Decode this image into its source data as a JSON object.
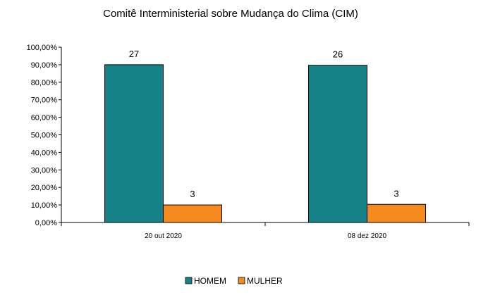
{
  "chart_data": {
    "type": "bar",
    "title": "Comitê Interministerial sobre Mudança do Clima (CIM)",
    "xlabel": "",
    "ylabel": "",
    "categories": [
      "20 out 2020",
      "08 dez 2020"
    ],
    "series": [
      {
        "name": "HOMEM",
        "values": [
          90.0,
          89.66
        ],
        "data_labels": [
          "27",
          "26"
        ],
        "color": "#148287"
      },
      {
        "name": "MULHER",
        "values": [
          10.0,
          10.34
        ],
        "data_labels": [
          "3",
          "3"
        ],
        "color": "#F58A1F"
      }
    ],
    "ylim": [
      0,
      100
    ],
    "yticks": [
      0,
      10,
      20,
      30,
      40,
      50,
      60,
      70,
      80,
      90,
      100
    ],
    "ytick_labels": [
      "0,00%",
      "10,00%",
      "20,00%",
      "30,00%",
      "40,00%",
      "50,00%",
      "60,00%",
      "70,00%",
      "80,00%",
      "90,00%",
      "100,00%"
    ],
    "grid": false,
    "legend_position": "bottom"
  }
}
